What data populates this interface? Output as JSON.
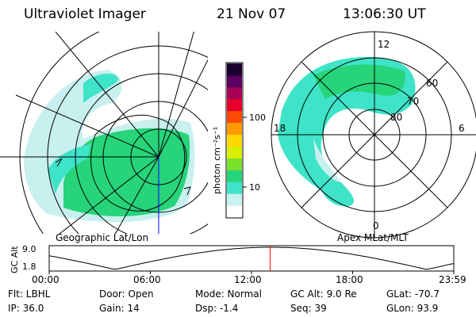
{
  "header": {
    "title": "Ultraviolet Imager",
    "date": "21 Nov 07",
    "time": "13:06:30 UT"
  },
  "colorbar": {
    "unit_label": "photon cm⁻²s⁻¹",
    "ticks": [
      "100",
      "10"
    ],
    "scale": "log",
    "colors": [
      "#ffffff",
      "#c8f0ee",
      "#3fe3c8",
      "#27d47a",
      "#7be22a",
      "#d8f000",
      "#ffd800",
      "#ff9a00",
      "#ff4a00",
      "#e8002a",
      "#a80055",
      "#5a0060",
      "#1a0030"
    ]
  },
  "left_map": {
    "caption": "Geographic Lat/Lon"
  },
  "right_map": {
    "caption": "Apex MLat/MLT",
    "mlt_labels": {
      "top": "12",
      "left": "18",
      "right": "6",
      "bottom": "0"
    },
    "lat_labels": [
      "60",
      "70",
      "80"
    ]
  },
  "timeline": {
    "ylabel": "GC Alt",
    "yticks": [
      "9.0",
      "1.8"
    ],
    "xticks": [
      "00:00",
      "06:00",
      "12:00",
      "18:00",
      "23:59"
    ],
    "marker_hours": 13.11,
    "marker_color": "#ff0000"
  },
  "status": {
    "flt": "Flt: LBHL",
    "ip": "IP: 36.0",
    "door": "Door: Open",
    "gain": "Gain: 14",
    "mode": "Mode: Normal",
    "dsp": "Dsp:    -1.4",
    "gc_alt": "GC Alt: 9.0 Re",
    "seq": "Seq: 39",
    "glat": "GLat: -70.7",
    "glon": "GLon:  93.9"
  }
}
